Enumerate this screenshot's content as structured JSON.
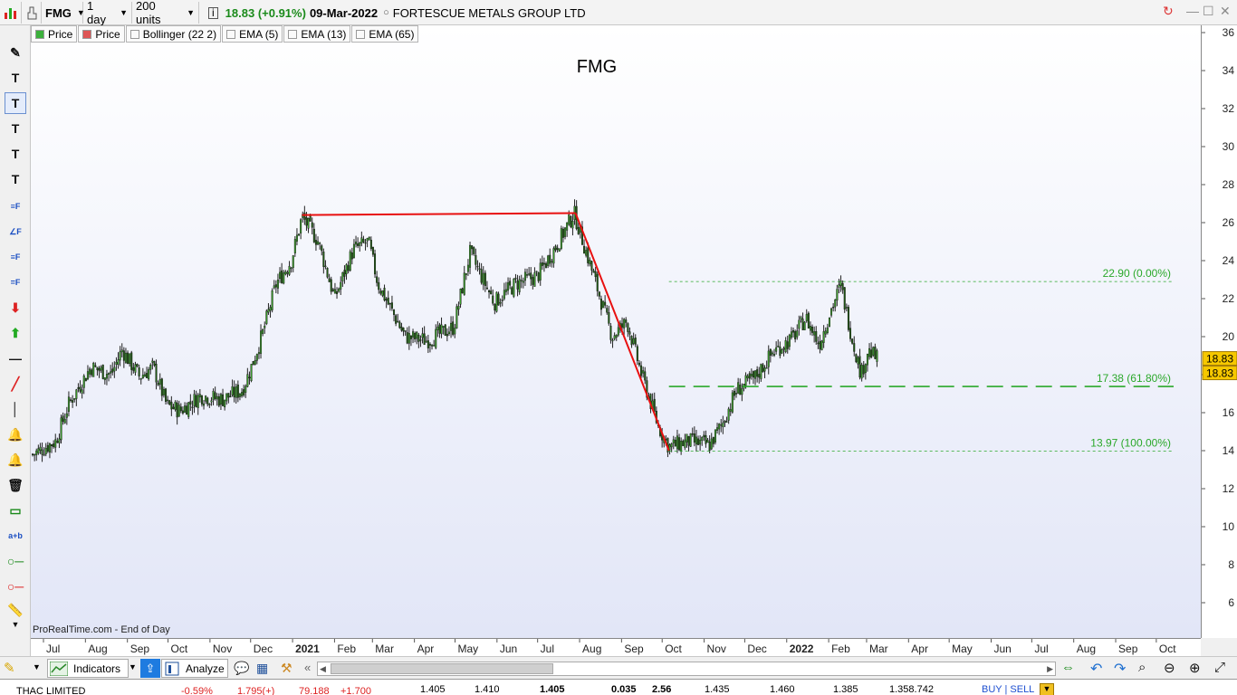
{
  "titlebar": {
    "symbol": "FMG",
    "timeframe": "1 day",
    "units": "200 units",
    "last_price": "18.83 (+0.91%)",
    "date": "09-Mar-2022",
    "instrument_name": "FORTESCUE METALS GROUP LTD"
  },
  "legend": [
    "Price",
    "Price",
    "Bollinger (22 2)",
    "EMA (5)",
    "EMA (13)",
    "EMA (65)"
  ],
  "legend_colors": [
    "#3cb03c",
    "#dd5555",
    "#ffffff",
    "#ffffff",
    "#ffffff",
    "#ffffff"
  ],
  "chart": {
    "title": "FMG",
    "source": "ProRealTime.com - End of Day",
    "price_badge_1": "18.83",
    "price_badge_2": "18.83",
    "accent_line": "#e81010",
    "fib_color": "#2aa82a",
    "fib_labels": [
      "22.90 (0.00%)",
      "17.38 (61.80%)",
      "13.97 (100.00%)"
    ]
  },
  "chart_data": {
    "type": "candlestick",
    "title": "FMG",
    "y_ticks": [
      6,
      8,
      10,
      12,
      14,
      16,
      18,
      20,
      22,
      24,
      26,
      28,
      30,
      32,
      34,
      36
    ],
    "x_ticks": [
      "Jul",
      "Aug",
      "Sep",
      "Oct",
      "Nov",
      "Dec",
      "2021",
      "Feb",
      "Mar",
      "Apr",
      "May",
      "Jun",
      "Jul",
      "Aug",
      "Sep",
      "Oct",
      "Nov",
      "Dec",
      "2022",
      "Feb",
      "Mar",
      "Apr",
      "May",
      "Jun",
      "Jul",
      "Aug",
      "Sep",
      "Oct"
    ],
    "x_bold": [
      "2021",
      "2022"
    ],
    "ylim": [
      4.5,
      36.5
    ],
    "price_path": [
      {
        "d": "2020-06-23",
        "p": 13.8
      },
      {
        "d": "2020-07-10",
        "p": 14.5
      },
      {
        "d": "2020-07-20",
        "p": 16.5
      },
      {
        "d": "2020-08-05",
        "p": 18.4
      },
      {
        "d": "2020-08-20",
        "p": 18.0
      },
      {
        "d": "2020-08-28",
        "p": 19.3
      },
      {
        "d": "2020-09-10",
        "p": 17.9
      },
      {
        "d": "2020-09-20",
        "p": 18.4
      },
      {
        "d": "2020-09-30",
        "p": 16.4
      },
      {
        "d": "2020-10-10",
        "p": 16.1
      },
      {
        "d": "2020-10-25",
        "p": 16.9
      },
      {
        "d": "2020-11-10",
        "p": 16.7
      },
      {
        "d": "2020-11-25",
        "p": 17.2
      },
      {
        "d": "2020-12-02",
        "p": 18.5
      },
      {
        "d": "2020-12-10",
        "p": 20.2
      },
      {
        "d": "2020-12-20",
        "p": 22.8
      },
      {
        "d": "2020-12-31",
        "p": 24.0
      },
      {
        "d": "2021-01-08",
        "p": 26.3
      },
      {
        "d": "2021-01-20",
        "p": 25.0
      },
      {
        "d": "2021-02-01",
        "p": 22.0
      },
      {
        "d": "2021-02-15",
        "p": 24.6
      },
      {
        "d": "2021-02-26",
        "p": 25.0
      },
      {
        "d": "2021-03-05",
        "p": 22.8
      },
      {
        "d": "2021-03-25",
        "p": 20.0
      },
      {
        "d": "2021-04-10",
        "p": 19.8
      },
      {
        "d": "2021-04-30",
        "p": 20.5
      },
      {
        "d": "2021-05-12",
        "p": 24.4
      },
      {
        "d": "2021-05-30",
        "p": 21.8
      },
      {
        "d": "2021-06-15",
        "p": 22.8
      },
      {
        "d": "2021-07-01",
        "p": 23.2
      },
      {
        "d": "2021-07-15",
        "p": 24.8
      },
      {
        "d": "2021-07-28",
        "p": 26.5
      },
      {
        "d": "2021-08-10",
        "p": 23.5
      },
      {
        "d": "2021-08-25",
        "p": 20.0
      },
      {
        "d": "2021-09-05",
        "p": 20.8
      },
      {
        "d": "2021-09-15",
        "p": 18.2
      },
      {
        "d": "2021-09-28",
        "p": 15.3
      },
      {
        "d": "2021-10-06",
        "p": 14.2
      },
      {
        "d": "2021-10-20",
        "p": 14.5
      },
      {
        "d": "2021-11-05",
        "p": 14.3
      },
      {
        "d": "2021-11-15",
        "p": 15.5
      },
      {
        "d": "2021-11-25",
        "p": 17.2
      },
      {
        "d": "2021-12-08",
        "p": 17.8
      },
      {
        "d": "2021-12-22",
        "p": 19.2
      },
      {
        "d": "2022-01-05",
        "p": 19.9
      },
      {
        "d": "2022-01-15",
        "p": 21.0
      },
      {
        "d": "2022-01-25",
        "p": 19.6
      },
      {
        "d": "2022-02-02",
        "p": 21.3
      },
      {
        "d": "2022-02-10",
        "p": 22.7
      },
      {
        "d": "2022-02-18",
        "p": 20.0
      },
      {
        "d": "2022-02-25",
        "p": 18.0
      },
      {
        "d": "2022-03-02",
        "p": 19.3
      },
      {
        "d": "2022-03-09",
        "p": 18.8
      }
    ],
    "trendlines": [
      {
        "from": {
          "d": "2021-01-08",
          "p": 26.4
        },
        "to": {
          "d": "2021-07-29",
          "p": 26.5
        }
      },
      {
        "from": {
          "d": "2021-07-29",
          "p": 26.5
        },
        "to": {
          "d": "2021-10-06",
          "p": 14.0
        }
      }
    ],
    "fib_levels": [
      {
        "value": 22.9,
        "label": "22.90 (0.00%)"
      },
      {
        "value": 17.38,
        "label": "17.38 (61.80%)"
      },
      {
        "value": 13.97,
        "label": "13.97 (100.00%)"
      }
    ],
    "last_price": 18.83
  },
  "bottombar": {
    "indicators_label": "Indicators",
    "analyze_label": "Analyze"
  },
  "ticker": {
    "name": "THAC LIMITED",
    "change": "-0.59%",
    "c1": "1.795(+)",
    "c2": "79.188",
    "c3": "+1.700",
    "v1": "1.405",
    "v2": "1.410",
    "v3": "1.405",
    "v4": "0.035",
    "v5": "2.56",
    "v6": "1.435",
    "v7": "1.460",
    "v8": "1.385",
    "v9": "1.358.742",
    "buy_sell": "BUY | SELL"
  }
}
